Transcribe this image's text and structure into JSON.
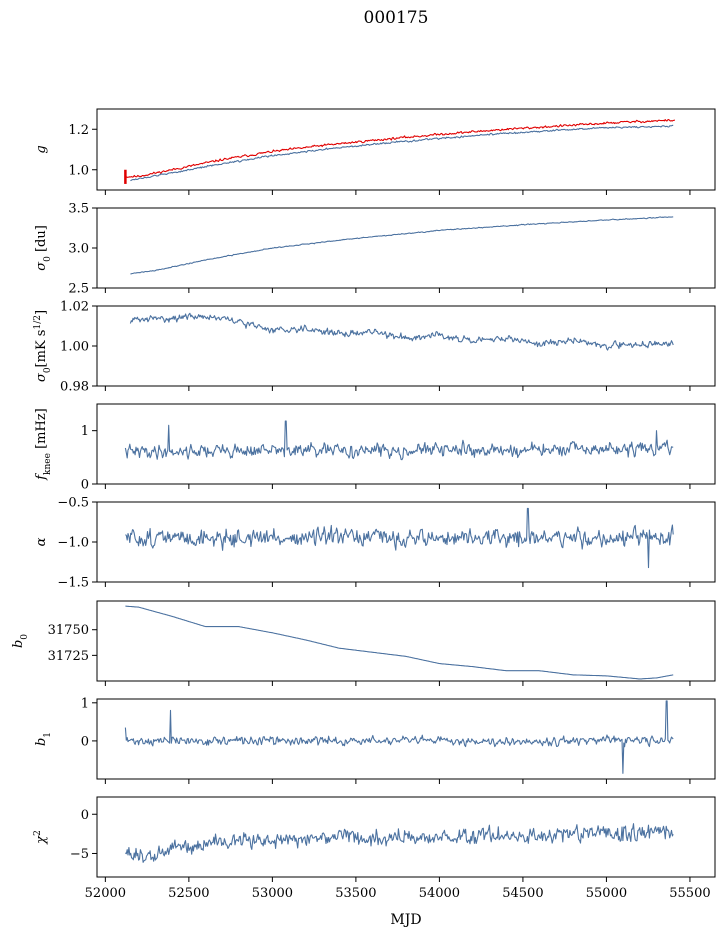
{
  "figure": {
    "title": "000175",
    "xlabel": "MJD",
    "xlim": [
      51950,
      55650
    ],
    "xticks": [
      52000,
      52500,
      53000,
      53500,
      54000,
      54500,
      55000,
      55500
    ],
    "colors": {
      "series": "#4c72a0",
      "highlight": "#e00000"
    }
  },
  "chart_data": [
    {
      "type": "line",
      "id": "g",
      "ylabel": "g",
      "ylim": [
        0.9,
        1.3
      ],
      "yticks": [
        1.0,
        1.2
      ],
      "ytick_labels": [
        "1.0",
        "1.2"
      ],
      "series": [
        {
          "color": "#e00000",
          "noise": 0.004,
          "seed": 11,
          "width": 2.2,
          "x": [
            52120,
            52200,
            52400,
            52700,
            53000,
            53300,
            53600,
            54000,
            54400,
            54800,
            55100,
            55410
          ],
          "y": [
            0.965,
            0.968,
            1.0,
            1.05,
            1.09,
            1.12,
            1.145,
            1.175,
            1.2,
            1.22,
            1.235,
            1.245
          ]
        },
        {
          "color": "#4c72a0",
          "noise": 0.003,
          "seed": 12,
          "x": [
            52150,
            52200,
            52400,
            52700,
            53000,
            53300,
            53600,
            54000,
            54400,
            54800,
            55100,
            55400
          ],
          "y": [
            0.95,
            0.955,
            0.985,
            1.03,
            1.07,
            1.1,
            1.125,
            1.155,
            1.18,
            1.2,
            1.21,
            1.215
          ]
        }
      ]
    },
    {
      "type": "line",
      "id": "sigma0-du",
      "ylabel": "σ0 [du]",
      "ylim": [
        2.5,
        3.5
      ],
      "yticks": [
        2.5,
        3.0,
        3.5
      ],
      "ytick_labels": [
        "2.5",
        "3.0",
        "3.5"
      ],
      "series": [
        {
          "color": "#4c72a0",
          "noise": 0.004,
          "seed": 21,
          "x": [
            52150,
            52300,
            52600,
            53000,
            53500,
            54000,
            54500,
            55000,
            55400
          ],
          "y": [
            2.68,
            2.72,
            2.85,
            3.0,
            3.12,
            3.22,
            3.29,
            3.35,
            3.39
          ]
        }
      ]
    },
    {
      "type": "line",
      "id": "sigma0-mk",
      "ylabel": "σ0[mK s^1/2]",
      "ylim": [
        0.98,
        1.02
      ],
      "yticks": [
        0.98,
        1.0,
        1.02
      ],
      "ytick_labels": [
        "0.98",
        "1.00",
        "1.02"
      ],
      "series": [
        {
          "color": "#4c72a0",
          "noise": 0.0012,
          "seed": 31,
          "x": [
            52150,
            52400,
            52600,
            52800,
            53000,
            53200,
            53400,
            53600,
            53800,
            54000,
            54200,
            54400,
            54600,
            54800,
            55000,
            55200,
            55400
          ],
          "y": [
            1.013,
            1.014,
            1.015,
            1.012,
            1.008,
            1.009,
            1.006,
            1.007,
            1.004,
            1.006,
            1.002,
            1.004,
            1.001,
            1.003,
            1.0,
            1.001,
            1.001
          ]
        }
      ]
    },
    {
      "type": "line",
      "id": "fknee",
      "ylabel": "fknee [mHz]",
      "ylim": [
        0.0,
        1.5
      ],
      "yticks": [
        0,
        1
      ],
      "ytick_labels": [
        "0",
        "1"
      ],
      "series": [
        {
          "color": "#4c72a0",
          "noise": 0.09,
          "seed": 41,
          "x": [
            52120,
            52500,
            53000,
            53500,
            54000,
            54500,
            55000,
            55400
          ],
          "y": [
            0.6,
            0.62,
            0.63,
            0.62,
            0.64,
            0.63,
            0.65,
            0.66
          ],
          "spikes": [
            [
              52380,
              1.1
            ],
            [
              53080,
              1.18
            ],
            [
              55300,
              1.0
            ]
          ]
        }
      ]
    },
    {
      "type": "line",
      "id": "alpha",
      "ylabel": "α",
      "ylim": [
        -1.5,
        -0.5
      ],
      "yticks": [
        -1.5,
        -1.0,
        -0.5
      ],
      "ytick_labels": [
        "−1.5",
        "−1.0",
        "−0.5"
      ],
      "series": [
        {
          "color": "#4c72a0",
          "noise": 0.08,
          "seed": 51,
          "x": [
            52120,
            53000,
            54000,
            55000,
            55400
          ],
          "y": [
            -0.95,
            -0.95,
            -0.95,
            -0.95,
            -0.95
          ],
          "spikes": [
            [
              54530,
              -0.58
            ],
            [
              55250,
              -1.32
            ]
          ]
        }
      ]
    },
    {
      "type": "line",
      "id": "b0",
      "ylabel": "b0",
      "ylim": [
        31700,
        31778
      ],
      "yticks": [
        31725,
        31750
      ],
      "ytick_labels": [
        "31725",
        "31750"
      ],
      "series": [
        {
          "color": "#4c72a0",
          "noise": 0.0,
          "seed": 61,
          "x": [
            52120,
            52200,
            52400,
            52600,
            52800,
            53000,
            53200,
            53400,
            53600,
            53800,
            54000,
            54200,
            54400,
            54600,
            54800,
            55000,
            55200,
            55300,
            55400
          ],
          "y": [
            31773,
            31772,
            31763,
            31753,
            31753,
            31747,
            31740,
            31732,
            31728,
            31724,
            31717,
            31714,
            31710,
            31710,
            31706,
            31705,
            31702,
            31703,
            31706
          ]
        }
      ]
    },
    {
      "type": "line",
      "id": "b1",
      "ylabel": "b1",
      "ylim": [
        -1.0,
        1.1
      ],
      "yticks": [
        0,
        1
      ],
      "ytick_labels": [
        "0",
        "1"
      ],
      "series": [
        {
          "color": "#4c72a0",
          "noise": 0.08,
          "seed": 71,
          "x": [
            52120,
            53000,
            54000,
            55000,
            55400
          ],
          "y": [
            0.0,
            0.0,
            0.0,
            0.0,
            0.0
          ],
          "spikes": [
            [
              52120,
              0.35
            ],
            [
              52390,
              0.8
            ],
            [
              55100,
              -0.85
            ],
            [
              55360,
              1.05
            ]
          ]
        }
      ]
    },
    {
      "type": "line",
      "id": "chi2",
      "ylabel": "χ²",
      "ylim": [
        -8,
        2.2
      ],
      "yticks": [
        -5,
        0
      ],
      "ytick_labels": [
        "−5",
        "0"
      ],
      "series": [
        {
          "color": "#4c72a0",
          "noise": 0.75,
          "seed": 81,
          "x": [
            52120,
            52250,
            52400,
            52700,
            53000,
            53500,
            54000,
            54500,
            55000,
            55400
          ],
          "y": [
            -4.6,
            -5.8,
            -4.3,
            -3.5,
            -3.2,
            -3.0,
            -2.9,
            -2.7,
            -2.5,
            -2.3
          ]
        }
      ]
    }
  ]
}
